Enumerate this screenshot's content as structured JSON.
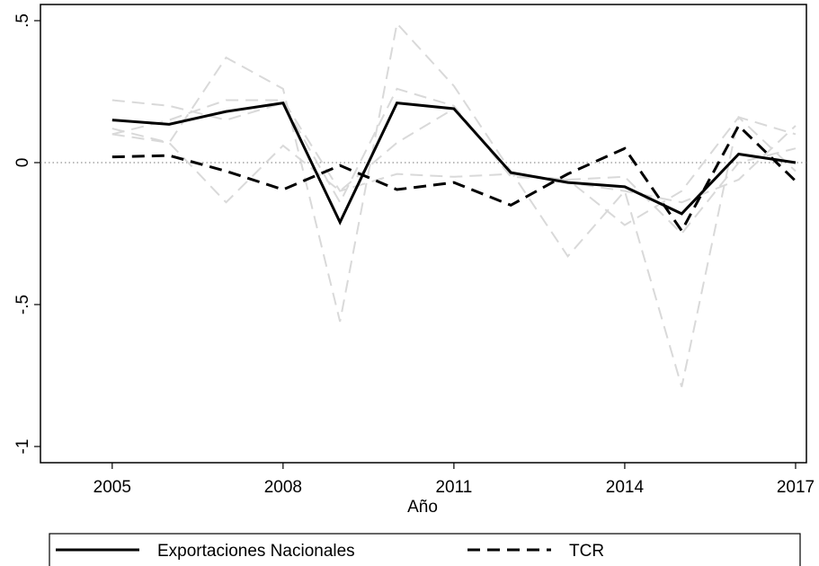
{
  "chart_data": {
    "type": "line",
    "x_label": "Año",
    "x": [
      2005,
      2006,
      2007,
      2008,
      2009,
      2010,
      2011,
      2012,
      2013,
      2014,
      2015,
      2016,
      2017
    ],
    "xlim": [
      2003.74,
      2017.19
    ],
    "xticks": [
      2005,
      2008,
      2011,
      2014,
      2017
    ],
    "ylim": [
      -1.057,
      0.557
    ],
    "yticks": [
      -1,
      {
        "value": -0.5,
        "label": "-.5"
      },
      0,
      {
        "value": 0.5,
        "label": ".5"
      }
    ],
    "zero_line": true,
    "series": [
      {
        "color": "#d9d9d9",
        "style": "dashed",
        "values": [
          0.1,
          0.07,
          0.37,
          0.26,
          -0.56,
          0.49,
          0.27,
          -0.03,
          -0.33,
          -0.1,
          -0.79,
          0.16,
          0.1
        ]
      },
      {
        "color": "#d9d9d9",
        "style": "dashed",
        "values": [
          0.22,
          0.2,
          0.15,
          0.21,
          -0.14,
          0.26,
          0.2,
          -0.05,
          -0.06,
          -0.22,
          -0.1,
          0.16,
          -0.03
        ]
      },
      {
        "color": "#d9d9d9",
        "style": "dashed",
        "values": [
          0.12,
          0.07,
          -0.14,
          0.06,
          -0.1,
          0.07,
          0.19,
          -0.04,
          -0.07,
          -0.1,
          -0.14,
          -0.06,
          0.13
        ]
      },
      {
        "color": "#d9d9d9",
        "style": "dashed",
        "values": [
          0.1,
          0.15,
          0.22,
          0.22,
          -0.1,
          -0.04,
          -0.05,
          -0.04,
          -0.06,
          -0.05,
          -0.25,
          0.0,
          0.05
        ]
      },
      {
        "name": "Exportaciones Nacionales",
        "color": "#000000",
        "style": "solid",
        "values": [
          0.15,
          0.135,
          0.18,
          0.21,
          -0.21,
          0.21,
          0.19,
          -0.035,
          -0.07,
          -0.085,
          -0.18,
          0.03,
          0.0
        ]
      },
      {
        "name": "TCR",
        "color": "#000000",
        "style": "dashed",
        "values": [
          0.02,
          0.025,
          -0.03,
          -0.095,
          -0.01,
          -0.095,
          -0.07,
          -0.15,
          -0.04,
          0.05,
          -0.24,
          0.13,
          -0.065
        ]
      }
    ]
  }
}
